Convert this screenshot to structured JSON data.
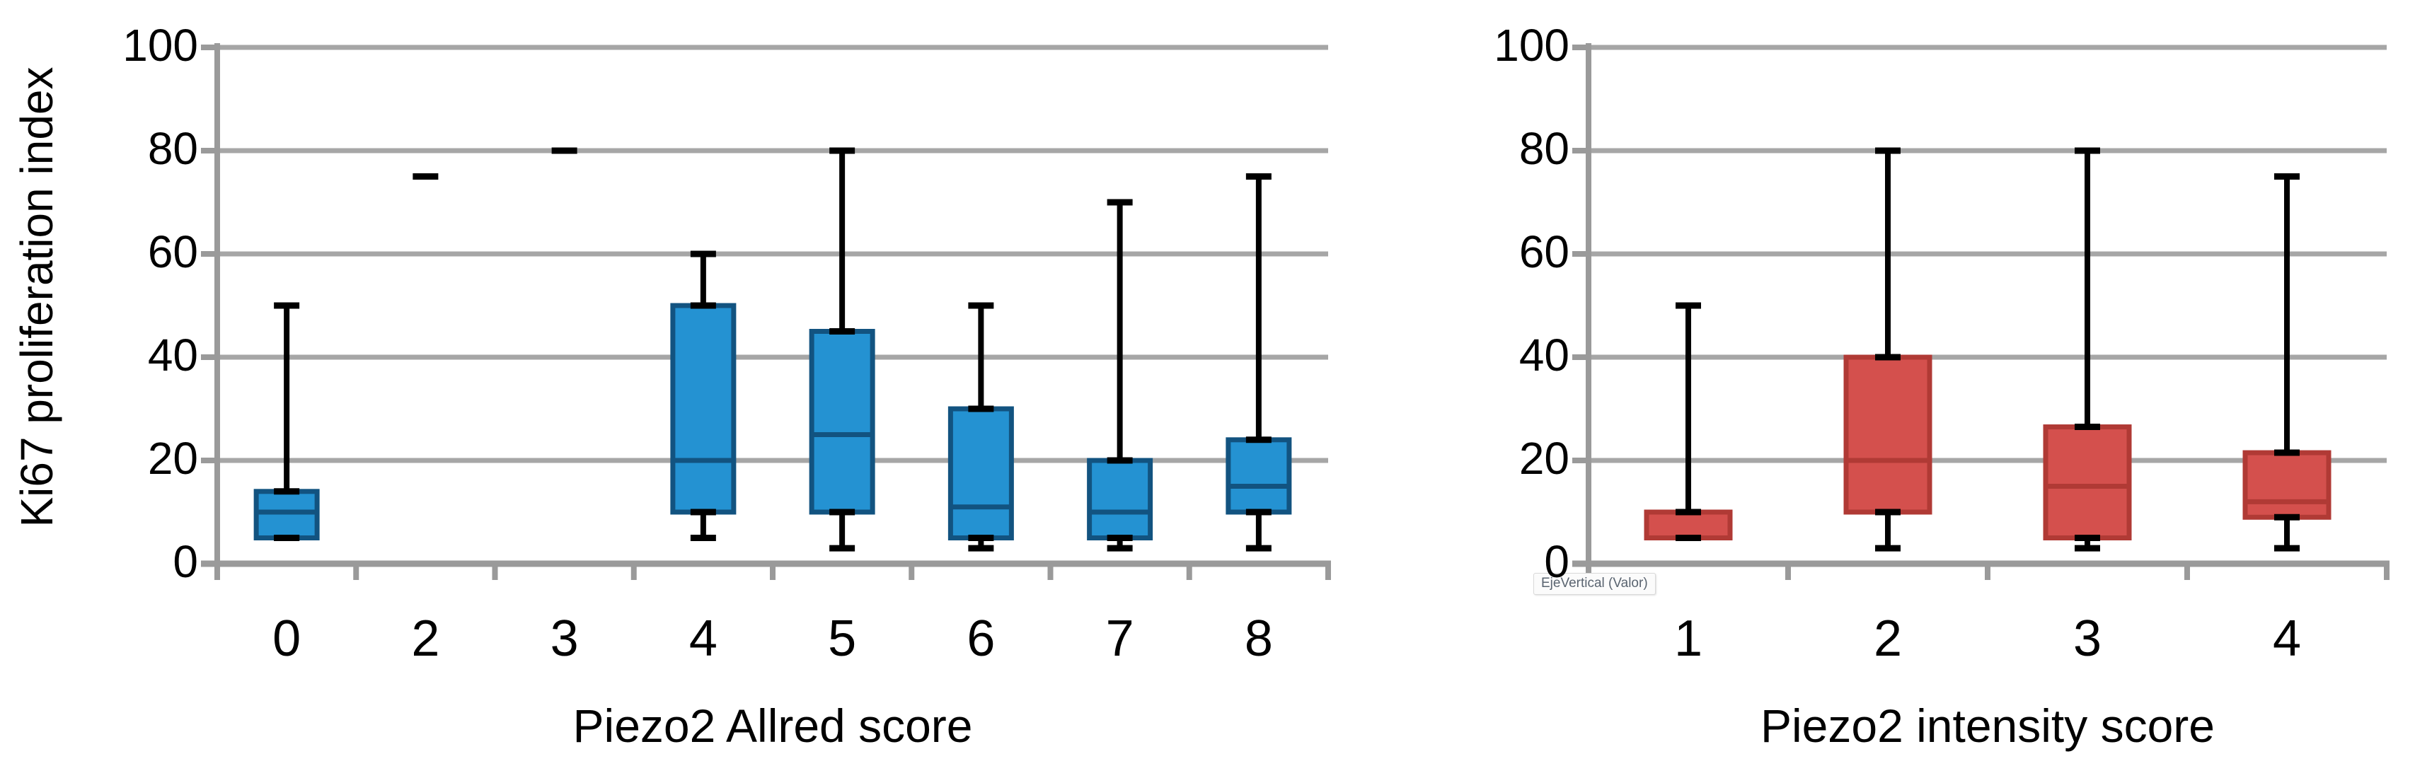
{
  "style": {
    "background": "#ffffff",
    "gridline_color": "#a6a6a6",
    "axis_color": "#9a9a9a",
    "text_color": "#000000",
    "tooltip_text_color": "#5a6470",
    "tooltip_bg": "#fbfbfb",
    "tooltip_border": "#d9d9d9"
  },
  "chart_data": [
    {
      "type": "boxplot",
      "title": "",
      "xlabel": "Piezo2 Allred score",
      "ylabel": "Ki67 proliferation index",
      "ylim": [
        0,
        100
      ],
      "yticks": [
        0,
        20,
        40,
        60,
        80,
        100
      ],
      "grid": true,
      "legend": false,
      "categories": [
        "0",
        "2",
        "3",
        "4",
        "5",
        "6",
        "7",
        "8"
      ],
      "colors": {
        "box_fill": "#2492d2",
        "box_border": "#125380",
        "median": "#125380",
        "whisker": "#000000"
      },
      "boxes": [
        {
          "category": "0",
          "min": 5,
          "q1": 5,
          "median": 10,
          "q3": 14,
          "max": 50
        },
        {
          "category": "2",
          "min": 75,
          "q1": 75,
          "median": 75,
          "q3": 75,
          "max": 75
        },
        {
          "category": "3",
          "min": 80,
          "q1": 80,
          "median": 80,
          "q3": 80,
          "max": 80
        },
        {
          "category": "4",
          "min": 5,
          "q1": 10,
          "median": 20,
          "q3": 50,
          "max": 60
        },
        {
          "category": "5",
          "min": 3,
          "q1": 10,
          "median": 25,
          "q3": 45,
          "max": 80
        },
        {
          "category": "6",
          "min": 3,
          "q1": 5,
          "median": 11,
          "q3": 30,
          "max": 50
        },
        {
          "category": "7",
          "min": 3,
          "q1": 5,
          "median": 10,
          "q3": 20,
          "max": 70
        },
        {
          "category": "8",
          "min": 3,
          "q1": 10,
          "median": 15,
          "q3": 24,
          "max": 75
        }
      ]
    },
    {
      "type": "boxplot",
      "title": "",
      "xlabel": "Piezo2 intensity score",
      "ylabel": "",
      "ylim": [
        0,
        100
      ],
      "yticks": [
        0,
        20,
        40,
        60,
        80,
        100
      ],
      "grid": true,
      "legend": false,
      "categories": [
        "1",
        "2",
        "3",
        "4"
      ],
      "annotation": "EjeVertical (Valor)",
      "colors": {
        "box_fill": "#d4504d",
        "box_border": "#b03a35",
        "median": "#b03a35",
        "whisker": "#000000"
      },
      "boxes": [
        {
          "category": "1",
          "min": 5,
          "q1": 5,
          "median": 5,
          "q3": 10,
          "max": 50
        },
        {
          "category": "2",
          "min": 3,
          "q1": 10,
          "median": 20,
          "q3": 40,
          "max": 80
        },
        {
          "category": "3",
          "min": 3,
          "q1": 5,
          "median": 15,
          "q3": 26.5,
          "max": 80
        },
        {
          "category": "4",
          "min": 3,
          "q1": 9,
          "median": 12,
          "q3": 21.5,
          "max": 75
        }
      ]
    }
  ]
}
